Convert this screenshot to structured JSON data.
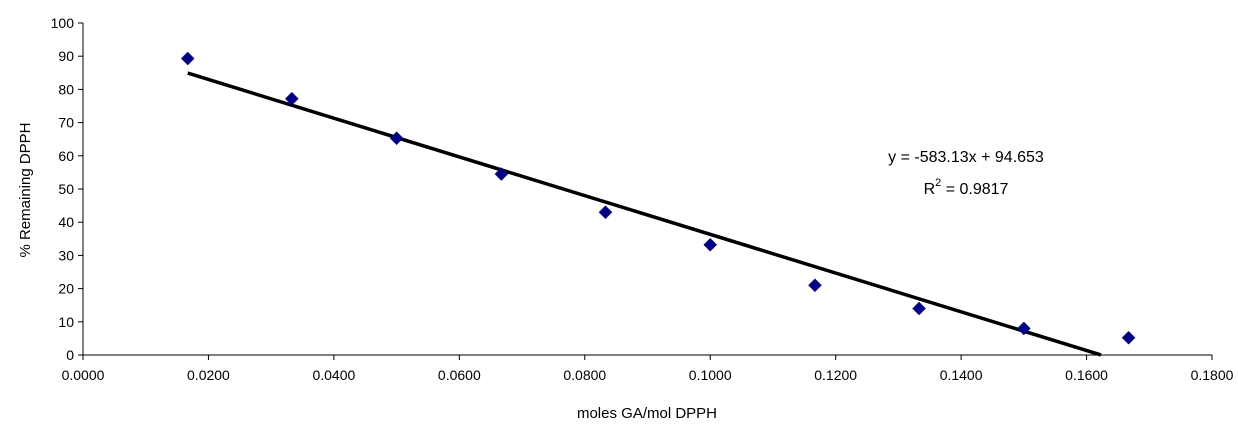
{
  "chart_data": {
    "type": "scatter",
    "xlabel": "moles GA/mol DPPH",
    "ylabel": "% Remaining DPPH",
    "xlim": [
      0,
      0.18
    ],
    "ylim": [
      0,
      100
    ],
    "x_ticks": [
      0,
      0.02,
      0.04,
      0.06,
      0.08,
      0.1,
      0.12,
      0.14,
      0.16,
      0.18
    ],
    "x_tick_labels": [
      "0.0000",
      "0.0200",
      "0.0400",
      "0.0600",
      "0.0800",
      "0.1000",
      "0.1200",
      "0.1400",
      "0.1600",
      "0.1800"
    ],
    "y_ticks": [
      0,
      10,
      20,
      30,
      40,
      50,
      60,
      70,
      80,
      90,
      100
    ],
    "y_tick_labels": [
      "0",
      "10",
      "20",
      "30",
      "40",
      "50",
      "60",
      "70",
      "80",
      "90",
      "100"
    ],
    "grid": false,
    "legend": "none",
    "marker_color": "#00008B",
    "line_color": "#000000",
    "series": [
      {
        "x": [
          0.0167,
          0.0333,
          0.05,
          0.0667,
          0.0833,
          0.1,
          0.1167,
          0.1333,
          0.15,
          0.1667
        ],
        "y": [
          89.3,
          77.2,
          65.3,
          54.5,
          43.0,
          33.2,
          21.0,
          14.0,
          8.0,
          5.2
        ]
      }
    ],
    "trendline": {
      "slope": -583.13,
      "intercept": 94.653,
      "x_range": [
        0.0167,
        0.1623
      ]
    },
    "annotations": {
      "equation": "y = -583.13x + 94.653",
      "r2_prefix": "R",
      "r2_sup": "2",
      "r2_value": " = 0.9817"
    }
  }
}
